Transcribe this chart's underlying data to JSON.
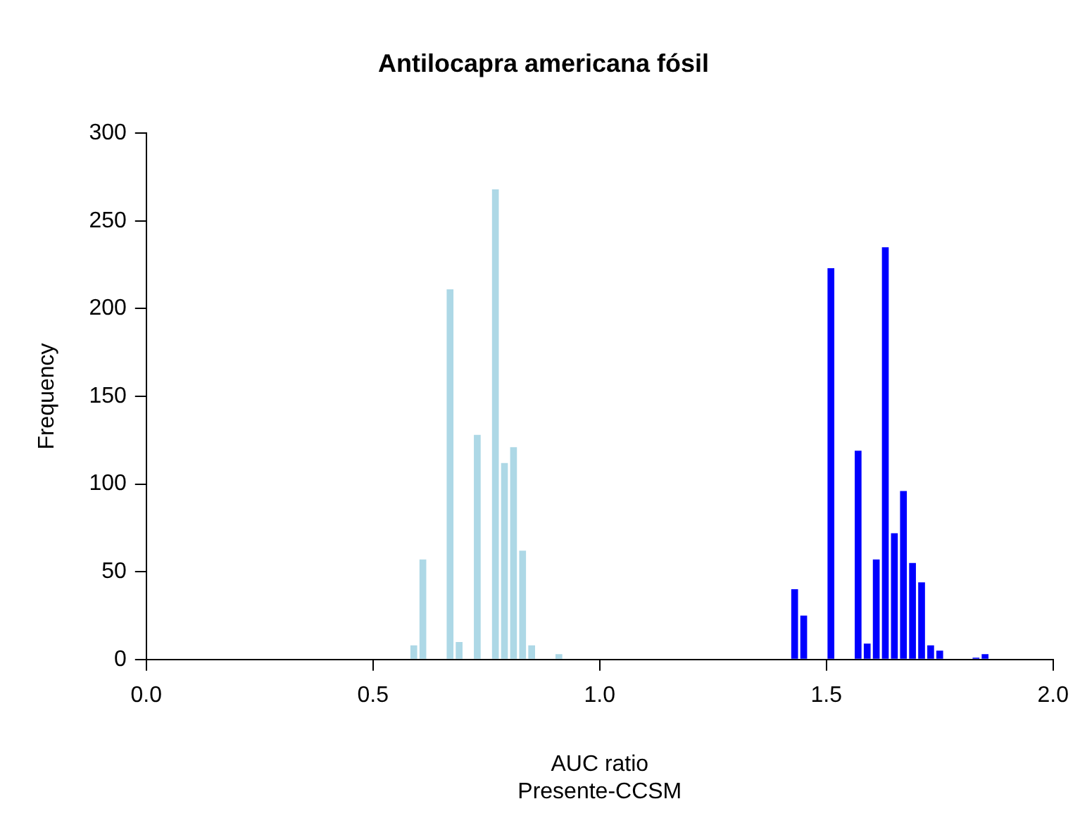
{
  "chart_data": {
    "type": "histogram",
    "title": "Antilocapra americana fósil",
    "xlabel": "AUC ratio\nPresente-CCSM",
    "ylabel": "Frequency",
    "xlim": [
      0,
      2
    ],
    "xticks": [
      {
        "value": 0,
        "label": "0.0"
      },
      {
        "value": 0.5,
        "label": "0.5"
      },
      {
        "value": 1,
        "label": "1.0"
      },
      {
        "value": 1.5,
        "label": "1.5"
      },
      {
        "value": 2,
        "label": "2.0"
      }
    ],
    "ylim": [
      0,
      300
    ],
    "yticks": [
      0,
      50,
      100,
      150,
      200,
      250,
      300
    ],
    "grid": false,
    "legend": false,
    "bins": [
      0.58,
      0.6,
      0.62,
      0.64,
      0.66,
      0.68,
      0.7,
      0.72,
      0.74,
      0.76,
      0.78,
      0.8,
      0.82,
      0.84,
      0.86,
      0.88,
      0.9,
      0.92,
      0.94,
      0.96,
      0.98,
      1.0,
      1.02,
      1.04,
      1.06,
      1.08,
      1.1,
      1.12,
      1.14,
      1.16,
      1.18,
      1.2,
      1.22,
      1.24,
      1.26,
      1.28,
      1.3,
      1.32,
      1.34,
      1.36,
      1.38,
      1.4,
      1.42,
      1.44,
      1.46,
      1.48,
      1.5,
      1.52,
      1.54,
      1.56,
      1.58,
      1.6,
      1.62,
      1.64,
      1.66,
      1.68,
      1.7,
      1.72,
      1.74,
      1.76,
      1.78,
      1.8,
      1.82,
      1.84,
      1.86
    ],
    "series": [
      {
        "color": "#add8e6",
        "values": [
          8,
          57,
          0,
          0,
          211,
          10,
          0,
          128,
          0,
          268,
          112,
          121,
          62,
          8,
          0,
          0,
          3,
          0,
          0,
          0,
          0,
          0,
          0,
          0,
          0,
          0,
          0,
          0,
          0,
          0,
          0,
          0,
          0,
          0,
          0,
          0,
          0,
          0,
          0,
          0,
          0,
          0,
          0,
          0,
          0,
          0,
          0,
          0,
          0,
          0,
          0,
          0,
          0,
          0,
          0,
          0,
          0,
          0,
          0,
          0,
          0,
          0,
          0,
          0
        ]
      },
      {
        "color": "#0000ff",
        "values": [
          0,
          0,
          0,
          0,
          0,
          0,
          0,
          0,
          0,
          0,
          0,
          0,
          0,
          0,
          0,
          0,
          0,
          0,
          0,
          0,
          0,
          0,
          0,
          0,
          0,
          0,
          0,
          0,
          0,
          0,
          0,
          0,
          0,
          0,
          0,
          0,
          0,
          0,
          0,
          0,
          0,
          0,
          40,
          25,
          0,
          0,
          223,
          0,
          0,
          119,
          9,
          57,
          235,
          72,
          96,
          55,
          44,
          8,
          5,
          0,
          0,
          0,
          1,
          3
        ]
      }
    ]
  }
}
